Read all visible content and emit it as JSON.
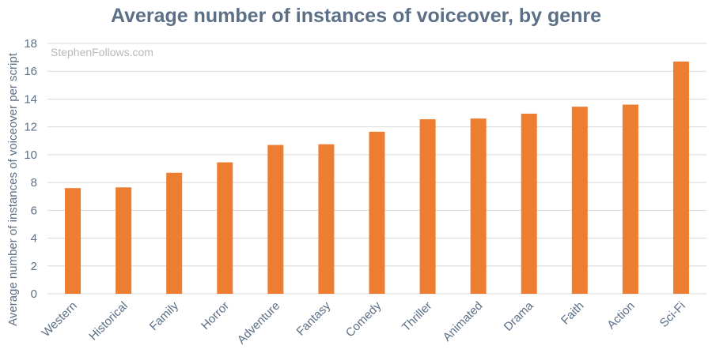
{
  "chart_data": {
    "type": "bar",
    "title": "Average number of instances of voiceover, by genre",
    "ylabel": "Average number of instances of voiceover per script",
    "xlabel": "",
    "watermark": "StephenFollows.com",
    "categories": [
      "Western",
      "Historical",
      "Family",
      "Horror",
      "Adventure",
      "Fantasy",
      "Comedy",
      "Thriller",
      "Animated",
      "Drama",
      "Faith",
      "Action",
      "Sci-Fi"
    ],
    "values": [
      7.6,
      7.65,
      8.7,
      9.45,
      10.7,
      10.75,
      11.65,
      12.55,
      12.6,
      12.95,
      13.45,
      13.6,
      16.7
    ],
    "ylim": [
      0,
      18
    ],
    "yticks": [
      0,
      2,
      4,
      6,
      8,
      10,
      12,
      14,
      16,
      18
    ],
    "grid": true,
    "legend": "none",
    "bar_color": "#ed7d31",
    "text_color": "#5b6f86"
  }
}
